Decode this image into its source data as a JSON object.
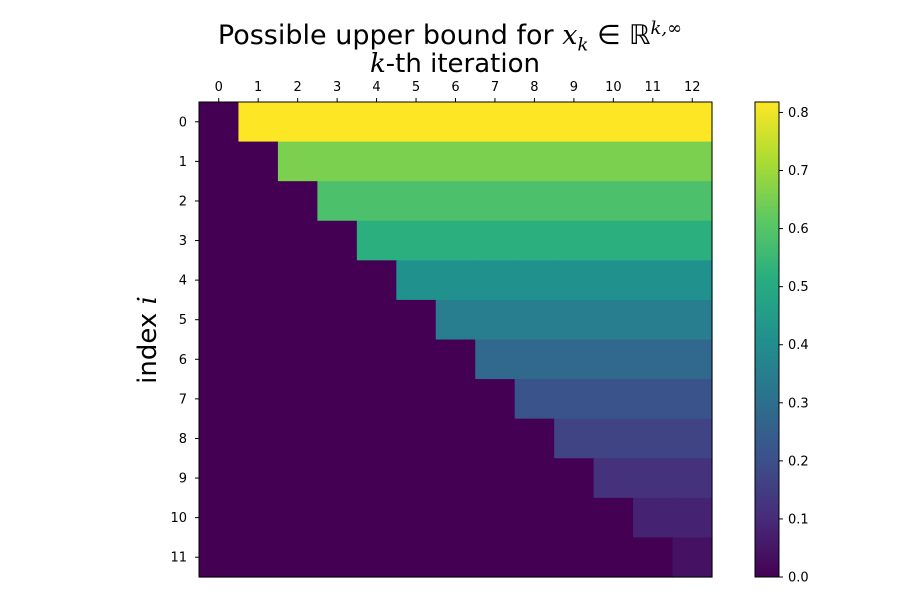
{
  "chart_data": {
    "type": "heatmap",
    "title": {
      "prefix": "Possible upper bound for ",
      "math_var": "x",
      "math_sub": "k",
      "math_rest": " ∈ ℝ",
      "math_sup": "k,∞"
    },
    "xlabel": {
      "math": "k",
      "text": "-th iteration"
    },
    "ylabel": {
      "text": "index ",
      "math": "i"
    },
    "x_ticks": [
      0,
      1,
      2,
      3,
      4,
      5,
      6,
      7,
      8,
      9,
      10,
      11,
      12
    ],
    "y_ticks": [
      0,
      1,
      2,
      3,
      4,
      5,
      6,
      7,
      8,
      9,
      10,
      11
    ],
    "rows": 12,
    "cols": 13,
    "row_values": [
      0.818,
      0.655,
      0.584,
      0.52,
      0.413,
      0.348,
      0.28,
      0.213,
      0.165,
      0.12,
      0.082,
      0.04
    ],
    "rule": "cell (i, k) = row_values[i] when k > i, otherwise 0",
    "colorbar": {
      "min": 0.0,
      "max": 0.818,
      "ticks": [
        "0.0",
        "0.1",
        "0.2",
        "0.3",
        "0.4",
        "0.5",
        "0.6",
        "0.7",
        "0.8"
      ],
      "colormap": "viridis"
    }
  }
}
